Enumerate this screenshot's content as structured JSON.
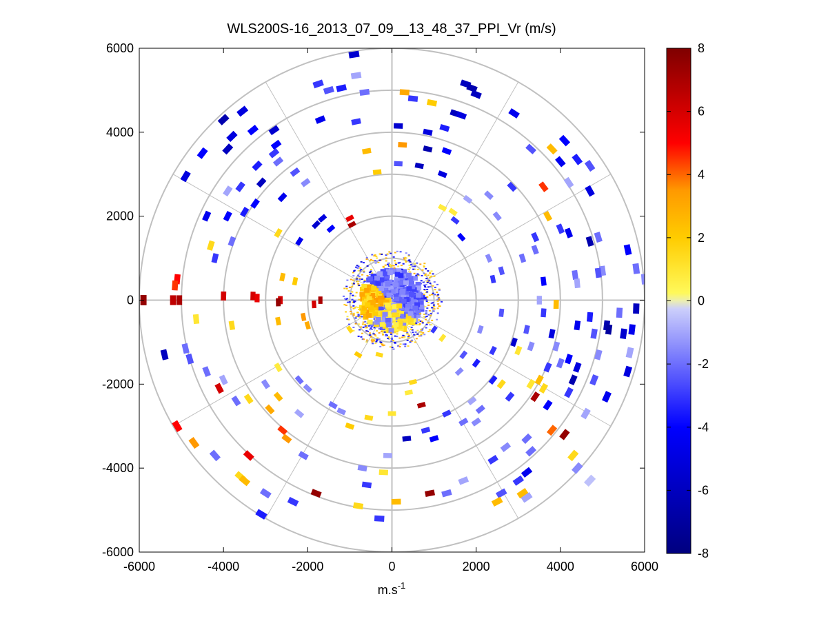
{
  "chart_data": {
    "type": "ppi-polar-scatter",
    "title": "WLS200S-16_2013_07_09__13_48_37_PPI_Vr (m/s)",
    "xlabel_base": "m.s",
    "xlabel_exp": "-1",
    "xlim": [
      -6000,
      6000
    ],
    "ylim": [
      -6000,
      6000
    ],
    "xticks": [
      "-6000",
      "-4000",
      "-2000",
      "0",
      "2000",
      "4000",
      "6000"
    ],
    "yticks": [
      "6000",
      "4000",
      "2000",
      "0",
      "-2000",
      "-4000",
      "-6000"
    ],
    "range_rings": [
      1000,
      2000,
      3000,
      4000,
      5000,
      6000
    ],
    "spoke_angles_deg": [
      0,
      30,
      60,
      90,
      120,
      150,
      180,
      210,
      240,
      270,
      300,
      330
    ],
    "colorbar": {
      "range": [
        -8,
        8
      ],
      "ticks": [
        "8",
        "6",
        "4",
        "2",
        "0",
        "-2",
        "-4",
        "-6",
        "-8"
      ],
      "colormap": "blue-white-yellow-red (diverging)"
    },
    "colors": {
      "grid": "#c0c0c0",
      "axis": "#000000",
      "neg_dark": "#00007f",
      "neg_mid": "#0000ff",
      "neg_light": "#d9dcfb",
      "pos_light": "#ffff66",
      "pos_mid": "#ff9900",
      "pos_dark": "#7f0000"
    },
    "points": [
      [
        -900,
        5850,
        -5.5
      ],
      [
        -850,
        5350,
        -1.0
      ],
      [
        -1750,
        5150,
        -3.0
      ],
      [
        -1200,
        5050,
        -3.5
      ],
      [
        -1500,
        5000,
        -2.5
      ],
      [
        -650,
        4950,
        -2.0
      ],
      [
        300,
        4950,
        3.0
      ],
      [
        1750,
        5150,
        -6.0
      ],
      [
        1900,
        5050,
        -6.5
      ],
      [
        2000,
        4900,
        -6.0
      ],
      [
        500,
        4800,
        -3.0
      ],
      [
        950,
        4700,
        2.0
      ],
      [
        1500,
        4450,
        -6.0
      ],
      [
        1650,
        4400,
        -5.0
      ],
      [
        2900,
        4450,
        -4.5
      ],
      [
        -4000,
        4300,
        -6.5
      ],
      [
        -3550,
        4500,
        -5.0
      ],
      [
        -3300,
        4050,
        -4.0
      ],
      [
        -2800,
        4050,
        -5.5
      ],
      [
        -3800,
        3900,
        -5.0
      ],
      [
        -2750,
        3700,
        -4.0
      ],
      [
        -3900,
        3600,
        -6.0
      ],
      [
        -1700,
        4300,
        -4.5
      ],
      [
        -850,
        4250,
        -3.0
      ],
      [
        150,
        4150,
        -5.5
      ],
      [
        850,
        4000,
        -5.0
      ],
      [
        1250,
        4100,
        -3.5
      ],
      [
        -4500,
        3500,
        -4.0
      ],
      [
        -2800,
        3500,
        -3.0
      ],
      [
        -2700,
        3300,
        -2.0
      ],
      [
        -3200,
        3200,
        -3.5
      ],
      [
        -2300,
        3050,
        -2.5
      ],
      [
        -4900,
        2950,
        -5.0
      ],
      [
        -3100,
        2800,
        -6.0
      ],
      [
        -3600,
        2700,
        -3.0
      ],
      [
        -3900,
        2600,
        -1.0
      ],
      [
        -2050,
        2800,
        -1.5
      ],
      [
        -600,
        3550,
        2.5
      ],
      [
        -350,
        3050,
        2.0
      ],
      [
        150,
        3250,
        -2.5
      ],
      [
        250,
        3700,
        3.5
      ],
      [
        850,
        3600,
        -6.5
      ],
      [
        1300,
        3550,
        -4.0
      ],
      [
        1200,
        3000,
        -5.0
      ],
      [
        650,
        3200,
        -6.0
      ],
      [
        3300,
        3600,
        -2.5
      ],
      [
        4100,
        3800,
        -4.0
      ],
      [
        3800,
        3600,
        2.5
      ],
      [
        4000,
        3300,
        -4.5
      ],
      [
        4400,
        3350,
        -3.5
      ],
      [
        4700,
        3200,
        -2.5
      ],
      [
        4200,
        2800,
        -1.0
      ],
      [
        4700,
        2600,
        -5.0
      ],
      [
        3600,
        2700,
        4.5
      ],
      [
        2850,
        2700,
        -3.0
      ],
      [
        2300,
        2500,
        -1.5
      ],
      [
        2500,
        2000,
        -1.5
      ],
      [
        1800,
        2400,
        -1.0
      ],
      [
        1450,
        2100,
        0.8
      ],
      [
        -4400,
        2000,
        -4.5
      ],
      [
        -3500,
        2100,
        -3.5
      ],
      [
        -2600,
        2450,
        -4.5
      ],
      [
        -3250,
        2300,
        -4.0
      ],
      [
        -3900,
        2000,
        -4.0
      ],
      [
        -1650,
        1950,
        -5.0
      ],
      [
        -1800,
        1800,
        -5.5
      ],
      [
        -2200,
        1400,
        -4.5
      ],
      [
        -1450,
        1700,
        -4.0
      ],
      [
        -1000,
        1950,
        5.5
      ],
      [
        -950,
        1800,
        7.0
      ],
      [
        1200,
        2200,
        0.8
      ],
      [
        1500,
        1900,
        -3.0
      ],
      [
        1650,
        1500,
        -4.0
      ],
      [
        3700,
        2000,
        2.5
      ],
      [
        4000,
        1700,
        -3.0
      ],
      [
        4900,
        1500,
        -2.0
      ],
      [
        4700,
        1400,
        -6.5
      ],
      [
        4200,
        1600,
        -4.5
      ],
      [
        3400,
        1500,
        -3.0
      ],
      [
        3400,
        1200,
        -2.0
      ],
      [
        3100,
        1000,
        -2.0
      ],
      [
        5000,
        700,
        -1.5
      ],
      [
        5800,
        750,
        -2.0
      ],
      [
        6000,
        500,
        -1.5
      ],
      [
        5600,
        1200,
        -4.0
      ],
      [
        4900,
        650,
        -2.5
      ],
      [
        4350,
        600,
        -2.0
      ],
      [
        4400,
        400,
        -1.0
      ],
      [
        2300,
        1000,
        -1.5
      ],
      [
        2600,
        700,
        -2.5
      ],
      [
        2400,
        500,
        -3.0
      ],
      [
        3600,
        450,
        -4.0
      ],
      [
        -4300,
        1300,
        1.5
      ],
      [
        -3800,
        1400,
        -2.0
      ],
      [
        -4200,
        1000,
        -3.0
      ],
      [
        -2700,
        1600,
        1.5
      ],
      [
        -2600,
        550,
        2.5
      ],
      [
        -2300,
        450,
        2.0
      ],
      [
        -5100,
        500,
        5.0
      ],
      [
        -5150,
        350,
        4.5
      ],
      [
        -5900,
        0,
        7.5
      ],
      [
        -5200,
        0,
        6.5
      ],
      [
        -5050,
        0,
        7.0
      ],
      [
        -4000,
        100,
        6.0
      ],
      [
        -3300,
        100,
        6.0
      ],
      [
        -3200,
        50,
        5.5
      ],
      [
        -2650,
        0,
        6.0
      ],
      [
        -2700,
        -50,
        7.5
      ],
      [
        -1700,
        0,
        7.0
      ],
      [
        -1850,
        -100,
        6.0
      ],
      [
        -4650,
        -450,
        1.0
      ],
      [
        -3800,
        -600,
        1.5
      ],
      [
        -2700,
        -500,
        2.5
      ],
      [
        -2000,
        -600,
        3.0
      ],
      [
        -2100,
        -400,
        3.5
      ],
      [
        -5400,
        -1300,
        -6.0
      ],
      [
        -4900,
        -1150,
        -2.0
      ],
      [
        -4800,
        -1400,
        -2.5
      ],
      [
        -4400,
        -1700,
        -2.0
      ],
      [
        -4100,
        -2100,
        6.0
      ],
      [
        -4000,
        -1900,
        -1.0
      ],
      [
        -3700,
        -2400,
        -2.0
      ],
      [
        -3400,
        -2350,
        1.5
      ],
      [
        -2700,
        -1600,
        0.8
      ],
      [
        -3000,
        -2000,
        -1.5
      ],
      [
        -2900,
        -2600,
        3.0
      ],
      [
        -2700,
        -2300,
        2.5
      ],
      [
        -2200,
        -1900,
        -2.0
      ],
      [
        -2000,
        -2100,
        -1.5
      ],
      [
        -2200,
        -2700,
        -1.0
      ],
      [
        -5100,
        -3000,
        5.0
      ],
      [
        -4700,
        -3400,
        3.5
      ],
      [
        -4200,
        -3700,
        -2.0
      ],
      [
        -3400,
        -3700,
        5.5
      ],
      [
        -2600,
        -3100,
        4.5
      ],
      [
        -2500,
        -3300,
        3.5
      ],
      [
        -1400,
        -2500,
        -2.0
      ],
      [
        -1200,
        -2650,
        -1.5
      ],
      [
        -3600,
        -4200,
        1.5
      ],
      [
        -3500,
        -4300,
        2.5
      ],
      [
        -3000,
        -4600,
        -2.0
      ],
      [
        -1800,
        -4600,
        7.5
      ],
      [
        -700,
        -4000,
        -1.5
      ],
      [
        -600,
        -4400,
        -3.0
      ],
      [
        -800,
        -4900,
        1.5
      ],
      [
        -300,
        -5200,
        -3.0
      ],
      [
        -3100,
        -5100,
        -3.5
      ],
      [
        -2350,
        -4800,
        -3.0
      ],
      [
        -2100,
        -3700,
        -2.0
      ],
      [
        -1000,
        -3000,
        2.0
      ],
      [
        -550,
        -2800,
        1.5
      ],
      [
        0,
        -2700,
        1.0
      ],
      [
        -100,
        -3700,
        -1.0
      ],
      [
        -200,
        -4100,
        1.0
      ],
      [
        100,
        -4800,
        2.5
      ],
      [
        900,
        -4600,
        7.5
      ],
      [
        1300,
        -4600,
        -2.0
      ],
      [
        1700,
        -4300,
        -1.0
      ],
      [
        800,
        -3100,
        -3.0
      ],
      [
        1000,
        -3300,
        -4.0
      ],
      [
        350,
        -3300,
        -6.0
      ],
      [
        400,
        -2200,
        0.8
      ],
      [
        700,
        -2500,
        7.0
      ],
      [
        500,
        -1950,
        1.5
      ],
      [
        1300,
        -2700,
        -3.0
      ],
      [
        1700,
        -2900,
        -2.0
      ],
      [
        2000,
        -2900,
        -1.5
      ],
      [
        2100,
        -2600,
        -2.0
      ],
      [
        1900,
        -2400,
        -1.0
      ],
      [
        2800,
        -2300,
        -3.0
      ],
      [
        2400,
        -1900,
        -3.5
      ],
      [
        2600,
        -2000,
        1.5
      ],
      [
        3300,
        -2000,
        1.0
      ],
      [
        3600,
        -2100,
        1.5
      ],
      [
        3400,
        -2300,
        7.0
      ],
      [
        3500,
        -1900,
        2.5
      ],
      [
        3700,
        -2500,
        -4.0
      ],
      [
        4200,
        -2200,
        -3.0
      ],
      [
        4600,
        -2700,
        -1.0
      ],
      [
        4100,
        -3200,
        7.5
      ],
      [
        3800,
        -3100,
        4.0
      ],
      [
        3300,
        -3600,
        -2.0
      ],
      [
        3200,
        -4100,
        -4.5
      ],
      [
        3000,
        -4300,
        -3.0
      ],
      [
        2600,
        -4600,
        -2.5
      ],
      [
        2500,
        -4800,
        2.5
      ],
      [
        3100,
        -4600,
        2.5
      ],
      [
        3200,
        -4700,
        -1.0
      ],
      [
        4300,
        -3700,
        1.5
      ],
      [
        4700,
        -4300,
        -0.5
      ],
      [
        4400,
        -4000,
        -1.5
      ],
      [
        3200,
        -3300,
        -2.0
      ],
      [
        2700,
        -3500,
        -1.5
      ],
      [
        2400,
        -3800,
        -3.0
      ],
      [
        3000,
        -1200,
        1.0
      ],
      [
        3300,
        -1100,
        -1.5
      ],
      [
        3700,
        -1600,
        -3.0
      ],
      [
        4000,
        -1500,
        -2.0
      ],
      [
        4200,
        -1400,
        -4.0
      ],
      [
        4400,
        -1600,
        -5.0
      ],
      [
        4300,
        -1900,
        -6.5
      ],
      [
        4800,
        -1900,
        -2.5
      ],
      [
        4900,
        -1300,
        -1.5
      ],
      [
        5100,
        -600,
        -6.5
      ],
      [
        5150,
        -700,
        -7.0
      ],
      [
        5500,
        -800,
        -5.5
      ],
      [
        5700,
        -700,
        -4.5
      ],
      [
        5650,
        -1250,
        -1.0
      ],
      [
        5600,
        -1700,
        -5.0
      ],
      [
        5100,
        -2300,
        -4.5
      ],
      [
        3900,
        -1100,
        -1.5
      ],
      [
        2900,
        -1000,
        -5.5
      ],
      [
        3200,
        -700,
        -2.5
      ],
      [
        2600,
        -300,
        -2.5
      ],
      [
        3600,
        -300,
        -3.0
      ],
      [
        3900,
        -100,
        2.5
      ],
      [
        3500,
        0,
        -1.0
      ],
      [
        3800,
        -800,
        -5.0
      ],
      [
        2000,
        -1500,
        -3.5
      ],
      [
        1700,
        -1300,
        -2.5
      ],
      [
        1600,
        -1700,
        -1.5
      ],
      [
        2100,
        -700,
        -1.5
      ],
      [
        2400,
        -1200,
        -3.0
      ],
      [
        4400,
        -600,
        -4.5
      ],
      [
        4700,
        -400,
        -3.5
      ],
      [
        4800,
        -800,
        -2.5
      ],
      [
        5800,
        -200,
        -6.0
      ],
      [
        5400,
        -300,
        -2.0
      ],
      [
        1000,
        -700,
        -3.0
      ],
      [
        1200,
        -900,
        1.0
      ],
      [
        -1000,
        -700,
        1.5
      ],
      [
        -800,
        -1300,
        2.0
      ],
      [
        -300,
        -1300,
        1.5
      ]
    ]
  }
}
